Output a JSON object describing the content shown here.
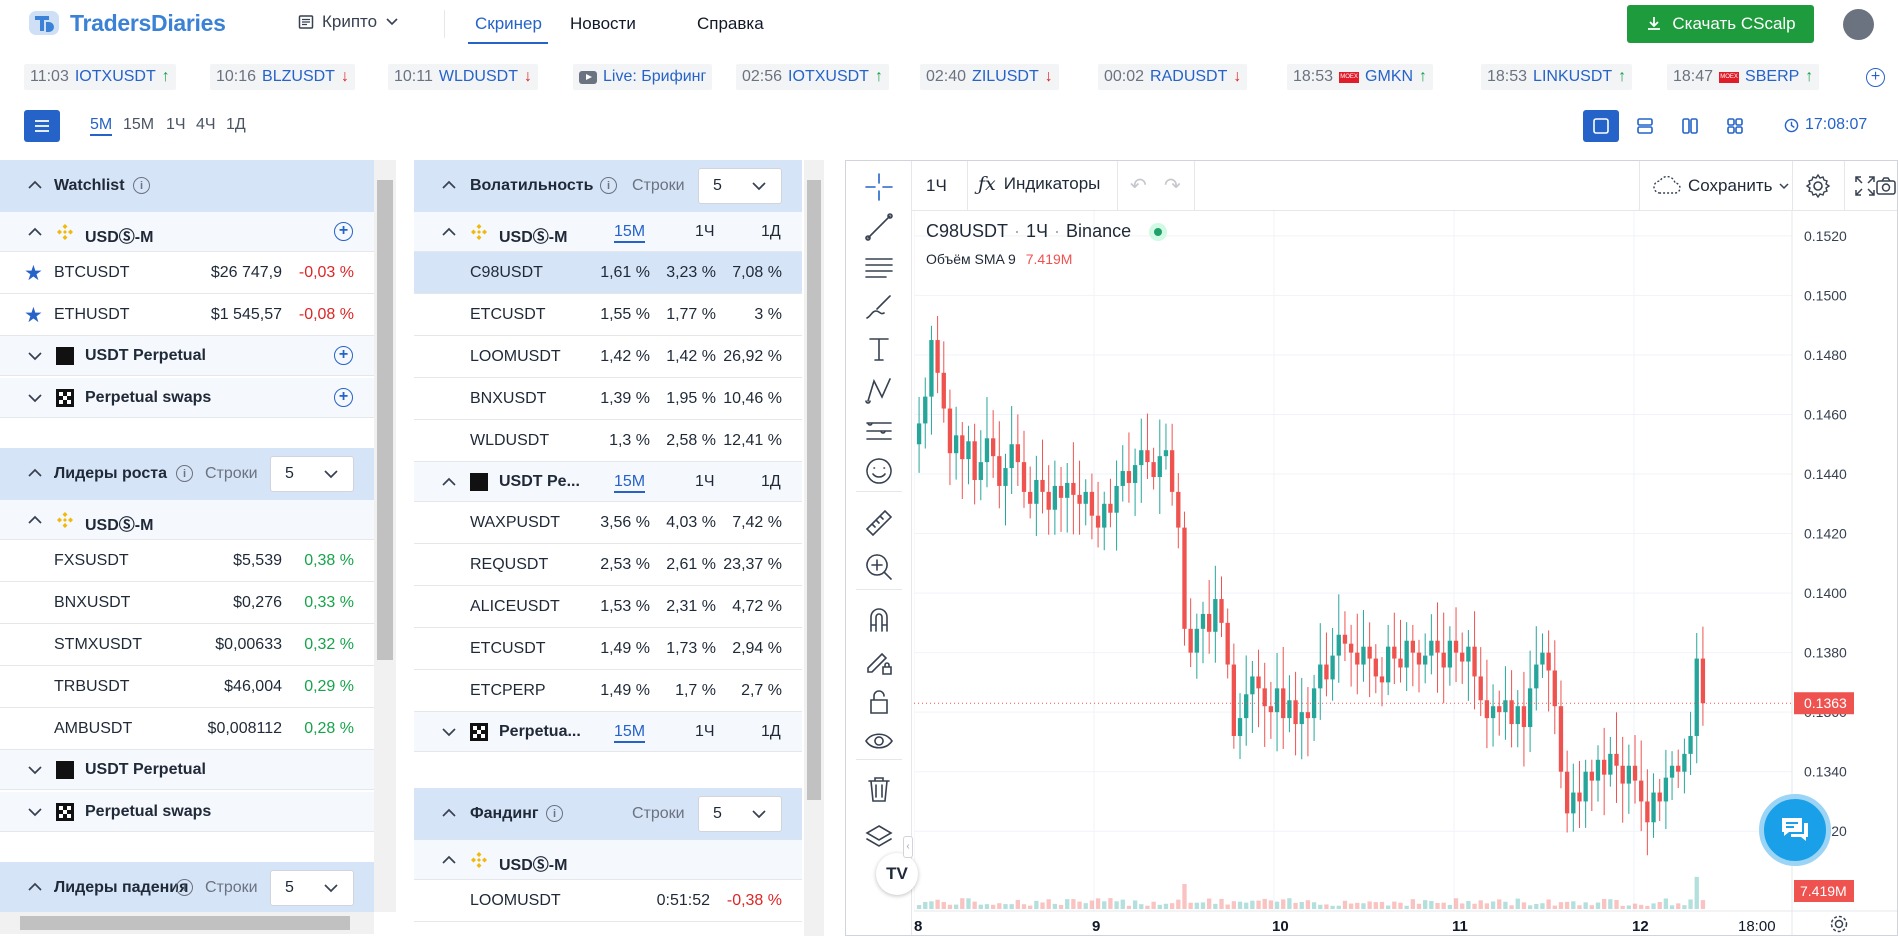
{
  "topnav": {
    "brand": "TradersDiaries",
    "market_dropdown": "Крипто",
    "links": [
      "Скринер",
      "Новости",
      "Справка"
    ],
    "download_label": "Скачать CScalp"
  },
  "ticker": [
    {
      "time": "11:03",
      "symbol": "IOTXUSDT",
      "dir": "up"
    },
    {
      "time": "10:16",
      "symbol": "BLZUSDT",
      "dir": "down"
    },
    {
      "time": "10:11",
      "symbol": "WLDUSDT",
      "dir": "down"
    },
    {
      "time": "",
      "symbol": "Live: Брифинг",
      "dir": "live"
    },
    {
      "time": "02:56",
      "symbol": "IOTXUSDT",
      "dir": "up"
    },
    {
      "time": "02:40",
      "symbol": "ZILUSDT",
      "dir": "down"
    },
    {
      "time": "00:02",
      "symbol": "RADUSDT",
      "dir": "down"
    },
    {
      "time": "18:53",
      "symbol": "GMKN",
      "dir": "up",
      "moex": true
    },
    {
      "time": "18:53",
      "symbol": "LINKUSDT",
      "dir": "up"
    },
    {
      "time": "18:47",
      "symbol": "SBERP",
      "dir": "up",
      "moex": true
    }
  ],
  "timeframes": [
    "5М",
    "15М",
    "1Ч",
    "4Ч",
    "1Д"
  ],
  "clock": "17:08:07",
  "left": {
    "watchlist_title": "Watchlist",
    "usdm_label": "USDⓈ-M",
    "usdt_perp_label": "USDT Perpetual",
    "perp_swaps_label": "Perpetual swaps",
    "watchlist_rows": [
      {
        "symbol": "BTCUSDT",
        "price": "$26 747,9",
        "change": "-0,03 %"
      },
      {
        "symbol": "ETHUSDT",
        "price": "$1 545,57",
        "change": "-0,08 %"
      }
    ],
    "gainers_title": "Лидеры роста",
    "rows_label": "Строки",
    "rows_value": "5",
    "gainers_rows": [
      {
        "symbol": "FXSUSDT",
        "price": "$5,539",
        "change": "0,38 %"
      },
      {
        "symbol": "BNXUSDT",
        "price": "$0,276",
        "change": "0,33 %"
      },
      {
        "symbol": "STMXUSDT",
        "price": "$0,00633",
        "change": "0,32 %"
      },
      {
        "symbol": "TRBUSDT",
        "price": "$46,004",
        "change": "0,29 %"
      },
      {
        "symbol": "AMBUSDT",
        "price": "$0,008112",
        "change": "0,28 %"
      }
    ],
    "losers_title": "Лидеры падения"
  },
  "middle": {
    "vol_title": "Волатильность",
    "rows_label": "Строки",
    "rows_value": "5",
    "usdm_label": "USDⓈ-M",
    "usdt_pe_label": "USDT Pe...",
    "perpetua_label": "Perpetua...",
    "cols": [
      "15М",
      "1Ч",
      "1Д"
    ],
    "usdm_rows": [
      {
        "symbol": "C98USDT",
        "v1": "1,61 %",
        "v2": "3,23 %",
        "v3": "7,08 %"
      },
      {
        "symbol": "ETCUSDT",
        "v1": "1,55 %",
        "v2": "1,77 %",
        "v3": "3 %"
      },
      {
        "symbol": "LOOMUSDT",
        "v1": "1,42 %",
        "v2": "1,42 %",
        "v3": "26,92 %"
      },
      {
        "symbol": "BNXUSDT",
        "v1": "1,39 %",
        "v2": "1,95 %",
        "v3": "10,46 %"
      },
      {
        "symbol": "WLDUSDT",
        "v1": "1,3 %",
        "v2": "2,58 %",
        "v3": "12,41 %"
      }
    ],
    "perp_rows": [
      {
        "symbol": "WAXPUSDT",
        "v1": "3,56 %",
        "v2": "4,03 %",
        "v3": "7,42 %"
      },
      {
        "symbol": "REQUSDT",
        "v1": "2,53 %",
        "v2": "2,61 %",
        "v3": "23,37 %"
      },
      {
        "symbol": "ALICEUSDT",
        "v1": "1,53 %",
        "v2": "2,31 %",
        "v3": "4,72 %"
      },
      {
        "symbol": "ETCUSDT",
        "v1": "1,49 %",
        "v2": "1,73 %",
        "v3": "2,94 %"
      },
      {
        "symbol": "ETCPERP",
        "v1": "1,49 %",
        "v2": "1,7 %",
        "v3": "2,7 %"
      }
    ],
    "funding_title": "Фандинг",
    "funding_rows": [
      {
        "symbol": "LOOMUSDT",
        "time": "0:51:52",
        "rate": "-0,38 %"
      }
    ]
  },
  "chart": {
    "interval": "1Ч",
    "indicators_label": "Индикаторы",
    "save_label": "Сохранить",
    "legend_symbol": "C98USDT",
    "legend_interval": "1Ч",
    "legend_exchange": "Binance",
    "volume_label": "Объём SMA 9",
    "volume_value": "7.419M",
    "last_price_label": "0.1363",
    "volume_badge": "7.419M",
    "colors": {
      "up": "#26a69a",
      "down": "#ef5350"
    }
  },
  "chart_data": {
    "type": "candlestick",
    "price_ticks": [
      "0.1520",
      "0.1500",
      "0.1480",
      "0.1460",
      "0.1440",
      "0.1420",
      "0.1400",
      "0.1380",
      "0.1360",
      "0.1340",
      "0.1320"
    ],
    "x_ticks": [
      "8",
      "9",
      "10",
      "11",
      "12",
      "18:00"
    ],
    "close": [
      0.1457,
      0.1466,
      0.1485,
      0.1474,
      0.1462,
      0.1447,
      0.1453,
      0.1445,
      0.1451,
      0.1438,
      0.1444,
      0.1452,
      0.1446,
      0.1436,
      0.1442,
      0.145,
      0.1444,
      0.1434,
      0.143,
      0.1438,
      0.1434,
      0.1428,
      0.1436,
      0.1432,
      0.1437,
      0.1433,
      0.143,
      0.1434,
      0.1426,
      0.1422,
      0.143,
      0.1427,
      0.1436,
      0.1441,
      0.1437,
      0.1443,
      0.1448,
      0.1444,
      0.1439,
      0.1446,
      0.1448,
      0.1434,
      0.1422,
      0.1388,
      0.138,
      0.1388,
      0.1393,
      0.1387,
      0.1398,
      0.139,
      0.1376,
      0.1352,
      0.1358,
      0.1366,
      0.1372,
      0.1368,
      0.1362,
      0.136,
      0.1368,
      0.1358,
      0.1364,
      0.1356,
      0.136,
      0.1358,
      0.1368,
      0.1376,
      0.1371,
      0.1379,
      0.1386,
      0.1383,
      0.138,
      0.1376,
      0.1382,
      0.1378,
      0.1372,
      0.137,
      0.1382,
      0.1378,
      0.1375,
      0.1384,
      0.138,
      0.1376,
      0.1379,
      0.1384,
      0.138,
      0.1375,
      0.1384,
      0.138,
      0.1377,
      0.1382,
      0.1372,
      0.1364,
      0.1358,
      0.1362,
      0.136,
      0.1364,
      0.1356,
      0.1362,
      0.1355,
      0.1368,
      0.1376,
      0.138,
      0.1374,
      0.1362,
      0.134,
      0.1326,
      0.1333,
      0.133,
      0.134,
      0.1337,
      0.1344,
      0.1339,
      0.1346,
      0.1342,
      0.1336,
      0.1342,
      0.1337,
      0.133,
      0.1323,
      0.1333,
      0.133,
      0.1338,
      0.1342,
      0.134,
      0.1346,
      0.1352,
      0.1378,
      0.1363
    ],
    "volume_max_label": "7.419M"
  }
}
